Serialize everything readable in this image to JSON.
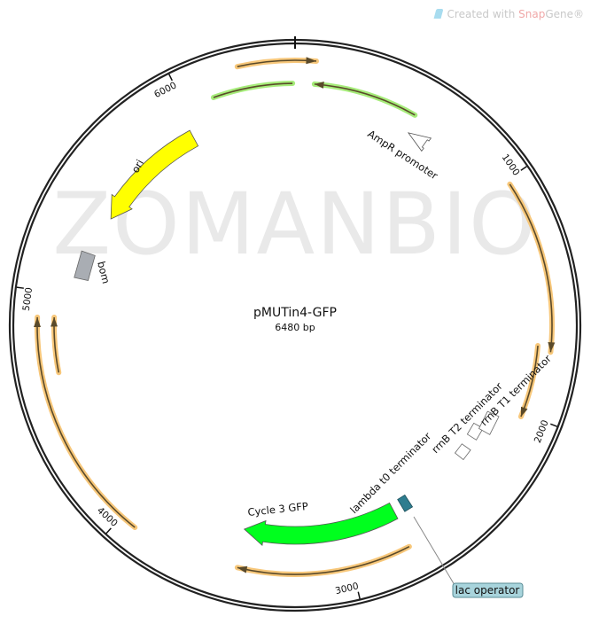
{
  "credit": {
    "prefix": "Created with ",
    "brand": "Snap",
    "suffix": "Gene®"
  },
  "watermark": "ZOMANBIO",
  "plasmid": {
    "name": "pMUTin4-GFP",
    "length_label": "6480 bp",
    "length_bp": 6480
  },
  "ticks": [
    "1000",
    "2000",
    "3000",
    "4000",
    "5000",
    "6000"
  ],
  "features": {
    "ampr_promoter": "AmpR promoter",
    "ori": "ori",
    "bom": "bom",
    "gfp": "Cycle 3 GFP",
    "lambda_t0": "lambda t0 terminator",
    "rrnb_t2": "rrnB T2 terminator",
    "rrnb_t1": "rrnB T1 terminator",
    "lac_operator": "lac operator"
  },
  "colors": {
    "backbone": "#222222",
    "orf_orange": "#f7c77a",
    "primer_green": "#a6ec7a",
    "gfp": "#00ff1e",
    "ori": "#ffff00",
    "bom": "#a9adb3",
    "lac_operator": "#2e7d8f",
    "lac_label_bg": "#a8d4dc"
  }
}
